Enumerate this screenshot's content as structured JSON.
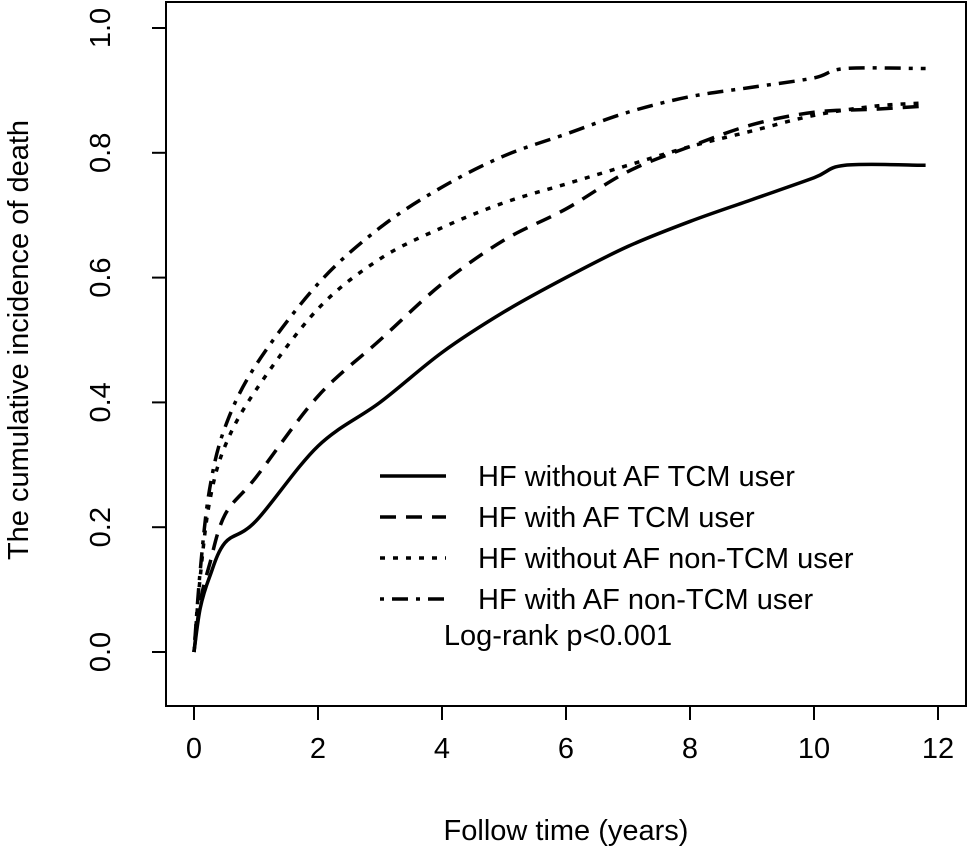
{
  "chart_data": {
    "type": "line",
    "title": "",
    "xlabel": "Follow time (years)",
    "ylabel": "The cumulative incidence of death",
    "xlim": [
      0,
      12
    ],
    "ylim": [
      0,
      1
    ],
    "xticks": [
      "0",
      "2",
      "4",
      "6",
      "8",
      "10",
      "12"
    ],
    "yticks": [
      "0.0",
      "0.2",
      "0.4",
      "0.6",
      "0.8",
      "1.0"
    ],
    "grid": false,
    "legend_position": "bottom-right",
    "annotation": "Log-rank p<0.001",
    "series": [
      {
        "name": "HF without AF TCM user",
        "style": "solid",
        "x": [
          0,
          0.1,
          0.25,
          0.5,
          1,
          2,
          3,
          4,
          5,
          6,
          7,
          8,
          9,
          10,
          10.5,
          11.8
        ],
        "y": [
          0,
          0.07,
          0.12,
          0.175,
          0.21,
          0.33,
          0.4,
          0.48,
          0.545,
          0.6,
          0.65,
          0.69,
          0.725,
          0.76,
          0.78,
          0.78
        ]
      },
      {
        "name": "HF with AF TCM user",
        "style": "dashed",
        "x": [
          0,
          0.1,
          0.25,
          0.5,
          1,
          2,
          3,
          4,
          5,
          6,
          7,
          8,
          9,
          10,
          11,
          11.8
        ],
        "y": [
          0,
          0.08,
          0.14,
          0.22,
          0.28,
          0.41,
          0.5,
          0.59,
          0.66,
          0.71,
          0.77,
          0.81,
          0.845,
          0.865,
          0.87,
          0.875
        ]
      },
      {
        "name": "HF without AF non-TCM user",
        "style": "dotted",
        "x": [
          0,
          0.1,
          0.25,
          0.5,
          1,
          2,
          3,
          4,
          5,
          6,
          7,
          8,
          9,
          10,
          11,
          11.8
        ],
        "y": [
          0,
          0.12,
          0.24,
          0.33,
          0.42,
          0.55,
          0.63,
          0.68,
          0.72,
          0.75,
          0.78,
          0.81,
          0.835,
          0.86,
          0.875,
          0.88
        ]
      },
      {
        "name": "HF with AF non-TCM user",
        "style": "dotdash",
        "x": [
          0,
          0.1,
          0.25,
          0.5,
          1,
          2,
          3,
          4,
          5,
          6,
          7,
          8,
          9,
          10,
          10.5,
          11.8
        ],
        "y": [
          0,
          0.13,
          0.26,
          0.36,
          0.46,
          0.59,
          0.68,
          0.745,
          0.795,
          0.83,
          0.865,
          0.89,
          0.905,
          0.92,
          0.935,
          0.935
        ]
      }
    ]
  }
}
